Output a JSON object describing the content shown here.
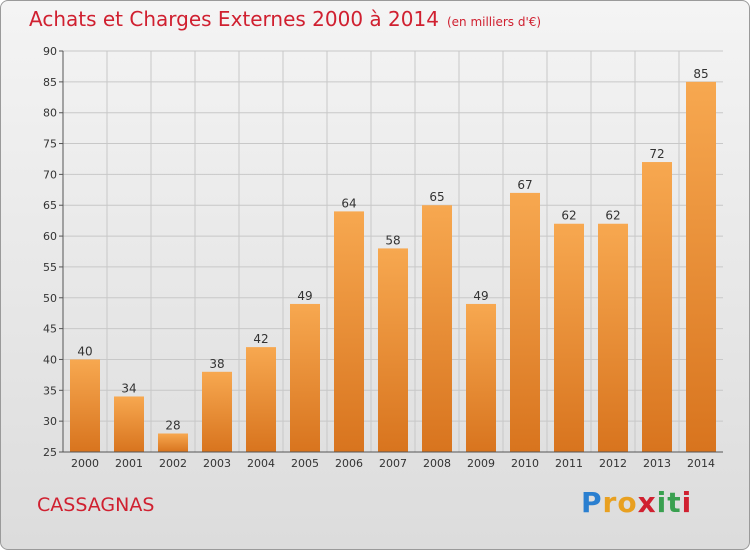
{
  "header": {
    "title": "Achats et Charges Externes 2000 à 2014",
    "unit": "(en milliers d'€)"
  },
  "footer": {
    "commune": "CASSAGNAS",
    "brand_letters": [
      "P",
      "r",
      "o",
      "x",
      "i",
      "t",
      "i"
    ],
    "brand_colors": [
      "#2a7fd0",
      "#e8a020",
      "#e8a020",
      "#d02030",
      "#3aa050",
      "#3aa050",
      "#d02030"
    ]
  },
  "colors": {
    "bar_light": "#f7a850",
    "bar_dark": "#d8741e",
    "grid": "#c8c8c8",
    "axis": "#555555",
    "text_red": "#d02030"
  },
  "chart_data": {
    "type": "bar",
    "title": "Achats et Charges Externes 2000 à 2014",
    "ylabel": "",
    "xlabel": "",
    "categories": [
      "2000",
      "2001",
      "2002",
      "2003",
      "2004",
      "2005",
      "2006",
      "2007",
      "2008",
      "2009",
      "2010",
      "2011",
      "2012",
      "2013",
      "2014"
    ],
    "values": [
      40,
      34,
      28,
      38,
      42,
      49,
      64,
      58,
      65,
      49,
      67,
      62,
      62,
      72,
      85
    ],
    "ylim": [
      25,
      90
    ],
    "yticks": [
      25,
      30,
      35,
      40,
      45,
      50,
      55,
      60,
      65,
      70,
      75,
      80,
      85,
      90
    ],
    "grid": true,
    "legend": "none"
  }
}
